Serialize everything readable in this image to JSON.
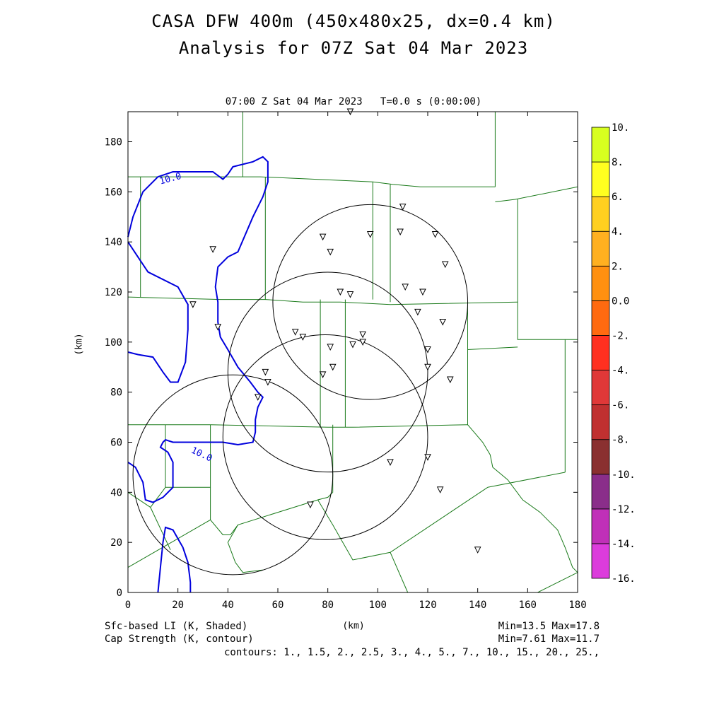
{
  "title_line1": "CASA DFW 400m (450x480x25, dx=0.4 km)",
  "title_line2": "Analysis for 07Z Sat 04 Mar 2023",
  "subtitle": "07:00 Z Sat 04 Mar 2023   T=0.0 s (0:00:00)",
  "footer": {
    "shaded_field": "Sfc-based LI (K, Shaded)",
    "contour_field": "Cap Strength (K, contour)",
    "shaded_minmax": "Min=13.5 Max=17.8",
    "contour_minmax": "Min=7.61 Max=11.7",
    "contours": "contours: 1., 1.5, 2., 2.5, 3., 4., 5., 7., 10., 15., 20., 25.,"
  },
  "colorbar": {
    "levels": [
      "-16.",
      "-14.",
      "-12.",
      "-10.",
      "-8.",
      "-6.",
      "-4.",
      "-2.",
      "0.0",
      "2.",
      "4.",
      "6.",
      "8.",
      "10."
    ],
    "colors": [
      "#dc3cdc",
      "#c030b8",
      "#8a2e8a",
      "#8a3030",
      "#c03030",
      "#e03838",
      "#ff3020",
      "#ff6a10",
      "#ff9010",
      "#ffb020",
      "#ffd020",
      "#ffff20",
      "#d8ff20",
      "#a8e020"
    ]
  },
  "chart_data": {
    "type": "map",
    "xlabel": "(km)",
    "ylabel": "(km)",
    "xlim": [
      0,
      180
    ],
    "ylim": [
      0,
      192
    ],
    "xticks": [
      0,
      20,
      40,
      60,
      80,
      100,
      120,
      140,
      160,
      180
    ],
    "yticks": [
      0,
      20,
      40,
      60,
      80,
      100,
      120,
      140,
      160,
      180
    ],
    "contour_label": "10.0",
    "contour_color": "#0000dd",
    "boundary_color": "#1a7a1a",
    "radar_range_circles": [
      {
        "cx": 97,
        "cy": 116,
        "r": 39
      },
      {
        "cx": 80,
        "cy": 88,
        "r": 40
      },
      {
        "cx": 42,
        "cy": 47,
        "r": 40
      },
      {
        "cx": 79,
        "cy": 62,
        "r": 41
      }
    ],
    "stations": [
      [
        89,
        192
      ],
      [
        110,
        154
      ],
      [
        78,
        142
      ],
      [
        81,
        136
      ],
      [
        97,
        143
      ],
      [
        109,
        144
      ],
      [
        123,
        143
      ],
      [
        127,
        131
      ],
      [
        34,
        137
      ],
      [
        26,
        115
      ],
      [
        36,
        106
      ],
      [
        85,
        120
      ],
      [
        89,
        119
      ],
      [
        111,
        122
      ],
      [
        118,
        120
      ],
      [
        116,
        112
      ],
      [
        126,
        108
      ],
      [
        67,
        104
      ],
      [
        70,
        102
      ],
      [
        94,
        103
      ],
      [
        94,
        100
      ],
      [
        90,
        99
      ],
      [
        81,
        98
      ],
      [
        120,
        97
      ],
      [
        55,
        88
      ],
      [
        82,
        90
      ],
      [
        120,
        90
      ],
      [
        129,
        85
      ],
      [
        78,
        87
      ],
      [
        56,
        84
      ],
      [
        52,
        78
      ],
      [
        105,
        52
      ],
      [
        120,
        54
      ],
      [
        125,
        41
      ],
      [
        73,
        35
      ],
      [
        140,
        17
      ]
    ]
  }
}
